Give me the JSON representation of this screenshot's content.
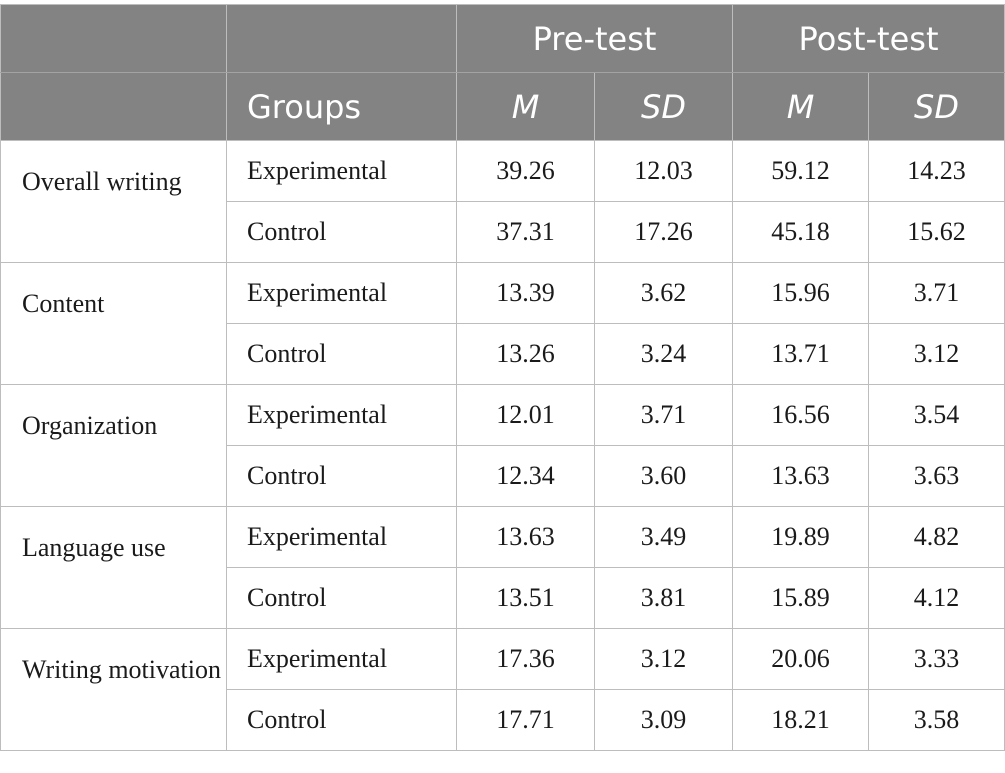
{
  "header": {
    "pre_test": "Pre-test",
    "post_test": "Post-test",
    "groups": "Groups",
    "m": "M",
    "sd": "SD"
  },
  "rows": [
    {
      "label": "Overall writing",
      "groups": [
        {
          "name": "Experimental",
          "pre_m": "39.26",
          "pre_sd": "12.03",
          "post_m": "59.12",
          "post_sd": "14.23"
        },
        {
          "name": "Control",
          "pre_m": "37.31",
          "pre_sd": "17.26",
          "post_m": "45.18",
          "post_sd": "15.62"
        }
      ]
    },
    {
      "label": "Content",
      "groups": [
        {
          "name": "Experimental",
          "pre_m": "13.39",
          "pre_sd": "3.62",
          "post_m": "15.96",
          "post_sd": "3.71"
        },
        {
          "name": "Control",
          "pre_m": "13.26",
          "pre_sd": "3.24",
          "post_m": "13.71",
          "post_sd": "3.12"
        }
      ]
    },
    {
      "label": "Organization",
      "groups": [
        {
          "name": "Experimental",
          "pre_m": "12.01",
          "pre_sd": "3.71",
          "post_m": "16.56",
          "post_sd": "3.54"
        },
        {
          "name": "Control",
          "pre_m": "12.34",
          "pre_sd": "3.60",
          "post_m": "13.63",
          "post_sd": "3.63"
        }
      ]
    },
    {
      "label": "Language use",
      "groups": [
        {
          "name": "Experimental",
          "pre_m": "13.63",
          "pre_sd": "3.49",
          "post_m": "19.89",
          "post_sd": "4.82"
        },
        {
          "name": "Control",
          "pre_m": "13.51",
          "pre_sd": "3.81",
          "post_m": "15.89",
          "post_sd": "4.12"
        }
      ]
    },
    {
      "label": "Writing motivation",
      "groups": [
        {
          "name": "Experimental",
          "pre_m": "17.36",
          "pre_sd": "3.12",
          "post_m": "20.06",
          "post_sd": "3.33"
        },
        {
          "name": "Control",
          "pre_m": "17.71",
          "pre_sd": "3.09",
          "post_m": "18.21",
          "post_sd": "3.58"
        }
      ]
    }
  ]
}
